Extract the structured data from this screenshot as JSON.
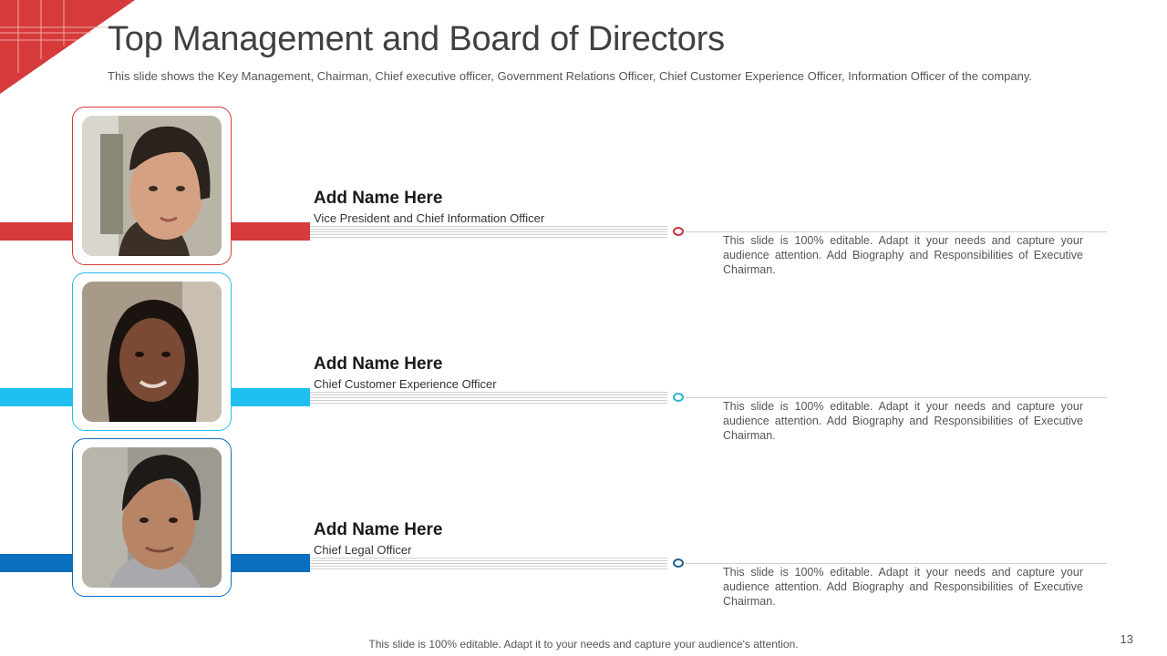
{
  "title": "Top Management and Board of Directors",
  "subtitle": "This slide shows the Key Management, Chairman, Chief executive officer, Government Relations Officer, Chief Customer Experience Officer, Information Officer of the company.",
  "colors": {
    "red": "#d63a3a",
    "light_blue": "#1ec0f2",
    "dark_blue": "#0a6fbf",
    "dot_red": "#c8333a",
    "dot_teal": "#27b6c9",
    "dot_navy": "#1f5d8c"
  },
  "people": [
    {
      "name": "Add Name Here",
      "role": "Vice President and Chief Information Officer",
      "description": "This slide is 100% editable. Adapt it your needs and capture your audience attention. Add Biography and Responsibilities of Executive Chairman.",
      "icon": "man-photo"
    },
    {
      "name": "Add Name Here",
      "role": "Chief Customer Experience Officer",
      "description": "This slide is 100% editable. Adapt it your needs and capture your audience attention. Add Biography and Responsibilities of Executive Chairman.",
      "icon": "woman-photo"
    },
    {
      "name": "Add Name Here",
      "role": "Chief Legal Officer",
      "description": "This slide is 100% editable. Adapt it your needs and capture your audience attention. Add Biography and Responsibilities of Executive Chairman.",
      "icon": "man-photo"
    }
  ],
  "footer": "This slide is 100% editable. Adapt it to your needs and capture your audience's attention.",
  "page_number": "13"
}
